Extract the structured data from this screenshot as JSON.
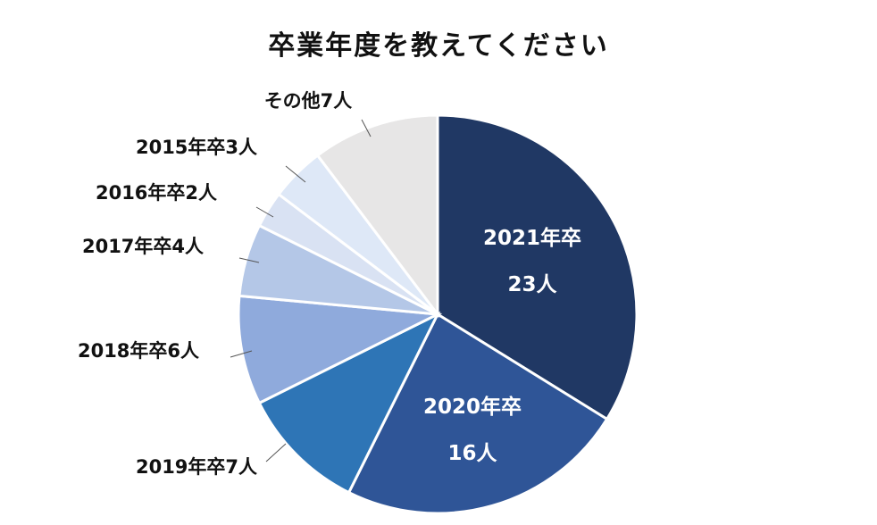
{
  "chart_data": {
    "type": "pie",
    "title": "卒業年度を教えてください",
    "slices": [
      {
        "category": "2021年卒",
        "value": 23,
        "value_label": "23人",
        "color": "#203864",
        "label_style": "inside"
      },
      {
        "category": "2020年卒",
        "value": 16,
        "value_label": "16人",
        "color": "#2f5597",
        "label_style": "inside"
      },
      {
        "category": "2019年卒",
        "value": 7,
        "value_label": "7人",
        "color": "#2e75b6",
        "label_style": "outside"
      },
      {
        "category": "2018年卒",
        "value": 6,
        "value_label": "6人",
        "color": "#8faadc",
        "label_style": "outside"
      },
      {
        "category": "2017年卒",
        "value": 4,
        "value_label": "4人",
        "color": "#b4c7e7",
        "label_style": "outside"
      },
      {
        "category": "2016年卒",
        "value": 2,
        "value_label": "2人",
        "color": "#d9e2f3",
        "label_style": "outside"
      },
      {
        "category": "2015年卒",
        "value": 3,
        "value_label": "3人",
        "color": "#dee8f7",
        "label_style": "outside"
      },
      {
        "category": "その他",
        "value": 7,
        "value_label": "7人",
        "color": "#e7e6e6",
        "label_style": "outside"
      }
    ],
    "start": "12 o'clock",
    "direction": "clockwise",
    "legend": "none"
  }
}
